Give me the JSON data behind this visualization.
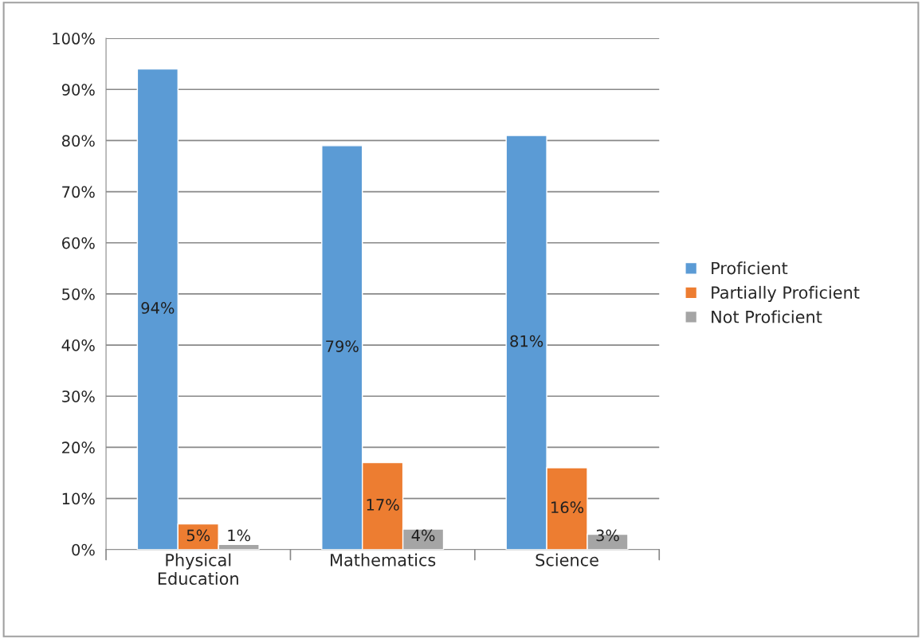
{
  "chart_data": {
    "type": "bar",
    "categories": [
      "Physical\nEducation",
      "Mathematics",
      "Science"
    ],
    "series": [
      {
        "name": "Proficient",
        "color": "#5b9bd5",
        "values": [
          94,
          79,
          81
        ],
        "value_labels": [
          "94%",
          "79%",
          "81%"
        ]
      },
      {
        "name": "Partially Proficient",
        "color": "#ed7d31",
        "values": [
          5,
          17,
          16
        ],
        "value_labels": [
          "5%",
          "17%",
          "16%"
        ]
      },
      {
        "name": "Not Proficient",
        "color": "#a5a5a5",
        "values": [
          1,
          4,
          3
        ],
        "value_labels": [
          "1%",
          "4%",
          "3%"
        ]
      }
    ],
    "ylim": [
      0,
      100
    ],
    "yticks": [
      {
        "value": 0,
        "label": "0%"
      },
      {
        "value": 10,
        "label": "10%"
      },
      {
        "value": 20,
        "label": "20%"
      },
      {
        "value": 30,
        "label": "30%"
      },
      {
        "value": 40,
        "label": "40%"
      },
      {
        "value": 50,
        "label": "50%"
      },
      {
        "value": 60,
        "label": "60%"
      },
      {
        "value": 70,
        "label": "70%"
      },
      {
        "value": 80,
        "label": "80%"
      },
      {
        "value": 90,
        "label": "90%"
      },
      {
        "value": 100,
        "label": "100%"
      }
    ],
    "grid": "y",
    "legend": "right"
  }
}
